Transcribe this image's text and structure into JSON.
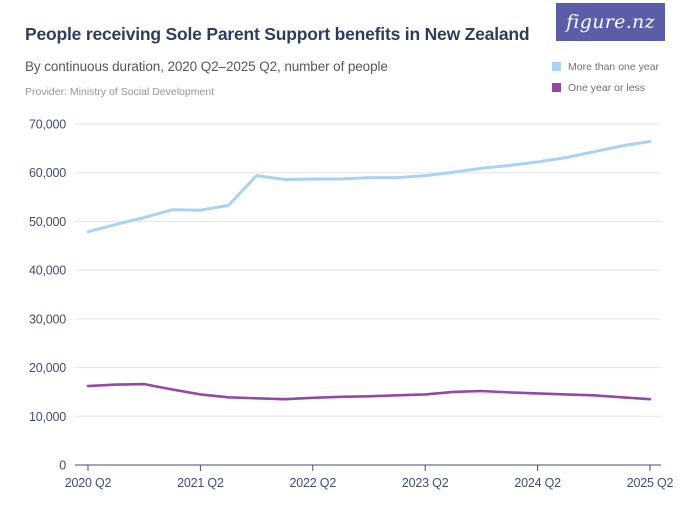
{
  "header": {
    "title": "People receiving Sole Parent Support benefits in New Zealand",
    "subtitle": "By continuous duration, 2020 Q2–2025 Q2, number of people",
    "provider": "Provider: Ministry of Social Development"
  },
  "logo": {
    "text": "figure.nz"
  },
  "colors": {
    "background": "#FFFFFF",
    "title": "#2F3D5C",
    "subtitle": "#55565E",
    "provider": "#94949B",
    "axis": "#3F4E70",
    "grid": "#E5E5E8",
    "legend_text": "#6F7077",
    "logo_bg": "#5A5EA8"
  },
  "chart_data": {
    "type": "line",
    "title": "People receiving Sole Parent Support benefits in New Zealand",
    "subtitle": "By continuous duration, 2020 Q2–2025 Q2, number of people",
    "xlabel": "",
    "ylabel": "",
    "ylim": [
      0,
      70000
    ],
    "y_ticks": [
      0,
      10000,
      20000,
      30000,
      40000,
      50000,
      60000,
      70000
    ],
    "grid": "horizontal",
    "legend_position": "top-right",
    "x": [
      "2020 Q2",
      "2020 Q3",
      "2020 Q4",
      "2021 Q1",
      "2021 Q2",
      "2021 Q3",
      "2021 Q4",
      "2022 Q1",
      "2022 Q2",
      "2022 Q3",
      "2022 Q4",
      "2023 Q1",
      "2023 Q2",
      "2023 Q3",
      "2023 Q4",
      "2024 Q1",
      "2024 Q2",
      "2024 Q3",
      "2024 Q4",
      "2025 Q1",
      "2025 Q2"
    ],
    "x_tick_labels": [
      "2020 Q2",
      "2021 Q2",
      "2022 Q2",
      "2023 Q2",
      "2024 Q2",
      "2025 Q2"
    ],
    "series": [
      {
        "name": "More than one year",
        "color": "#A9D2F5",
        "values": [
          47900,
          49400,
          50800,
          52400,
          52300,
          53300,
          59400,
          58600,
          58700,
          58700,
          59000,
          59000,
          59400,
          60100,
          60900,
          61500,
          62200,
          63100,
          64300,
          65500,
          66400
        ]
      },
      {
        "name": "One year or less",
        "color": "#9349A4",
        "values": [
          16200,
          16500,
          16600,
          15500,
          14500,
          13900,
          13700,
          13500,
          13800,
          14000,
          14100,
          14300,
          14500,
          15000,
          15200,
          14900,
          14700,
          14500,
          14300,
          13900,
          13500
        ]
      }
    ]
  }
}
